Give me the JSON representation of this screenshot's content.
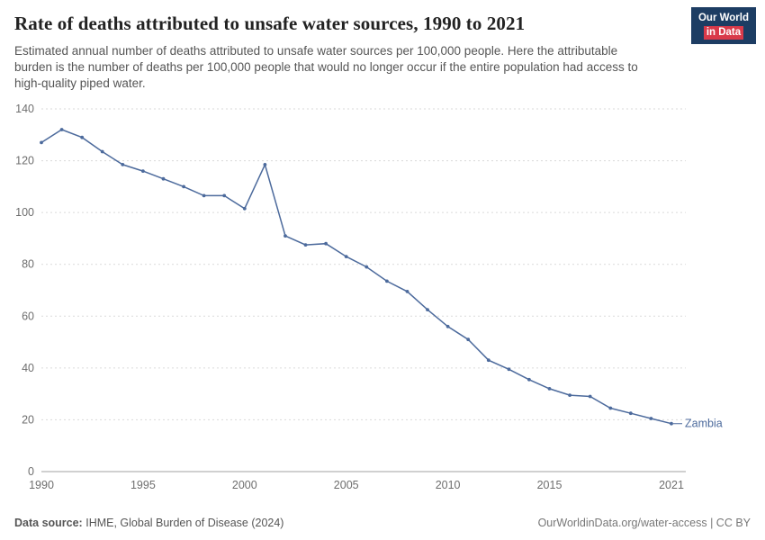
{
  "header": {
    "title": "Rate of deaths attributed to unsafe water sources, 1990 to 2021",
    "subtitle": "Estimated annual number of deaths attributed to unsafe water sources per 100,000 people. Here the attributable burden is the number of deaths per 100,000 people that would no longer occur if the entire population had access to high-quality piped water.",
    "logo": {
      "line1": "Our World",
      "line2": "in Data"
    }
  },
  "chart_data": {
    "type": "line",
    "title": "Rate of deaths attributed to unsafe water sources, 1990 to 2021",
    "xlabel": "",
    "ylabel": "Deaths per 100,000 people",
    "x": [
      1990,
      1991,
      1992,
      1993,
      1994,
      1995,
      1996,
      1997,
      1998,
      1999,
      2000,
      2001,
      2002,
      2003,
      2004,
      2005,
      2006,
      2007,
      2008,
      2009,
      2010,
      2011,
      2012,
      2013,
      2014,
      2015,
      2016,
      2017,
      2018,
      2019,
      2020,
      2021
    ],
    "series": [
      {
        "name": "Zambia",
        "color": "#4C6A9C",
        "values": [
          127,
          132,
          129,
          123.5,
          118.5,
          116,
          113,
          110,
          106.5,
          106.5,
          101.5,
          118.5,
          91,
          87.5,
          88,
          83,
          79,
          73.5,
          69.5,
          62.5,
          56,
          51,
          43,
          39.5,
          35.5,
          32,
          29.5,
          29,
          24.5,
          22.5,
          20.5,
          18.5
        ]
      }
    ],
    "ylim": [
      0,
      140
    ],
    "yticks": [
      0,
      20,
      40,
      60,
      80,
      100,
      120,
      140
    ],
    "xticks": [
      1990,
      1995,
      2000,
      2005,
      2010,
      2015,
      2021
    ],
    "grid": true,
    "gridline_style": "dashed-horizontal",
    "legend_position": "end-of-line-label"
  },
  "footer": {
    "source_label": "Data source:",
    "source_text": "IHME, Global Burden of Disease (2024)",
    "rights": "OurWorldinData.org/water-access | CC BY"
  },
  "colors": {
    "line": "#4C6A9C",
    "logo_bg": "#1d3d63",
    "logo_accent": "#d93a4a",
    "gridline": "#dadada",
    "axis_baseline": "#a1a1a1",
    "tick_label": "#6e6e6e"
  }
}
